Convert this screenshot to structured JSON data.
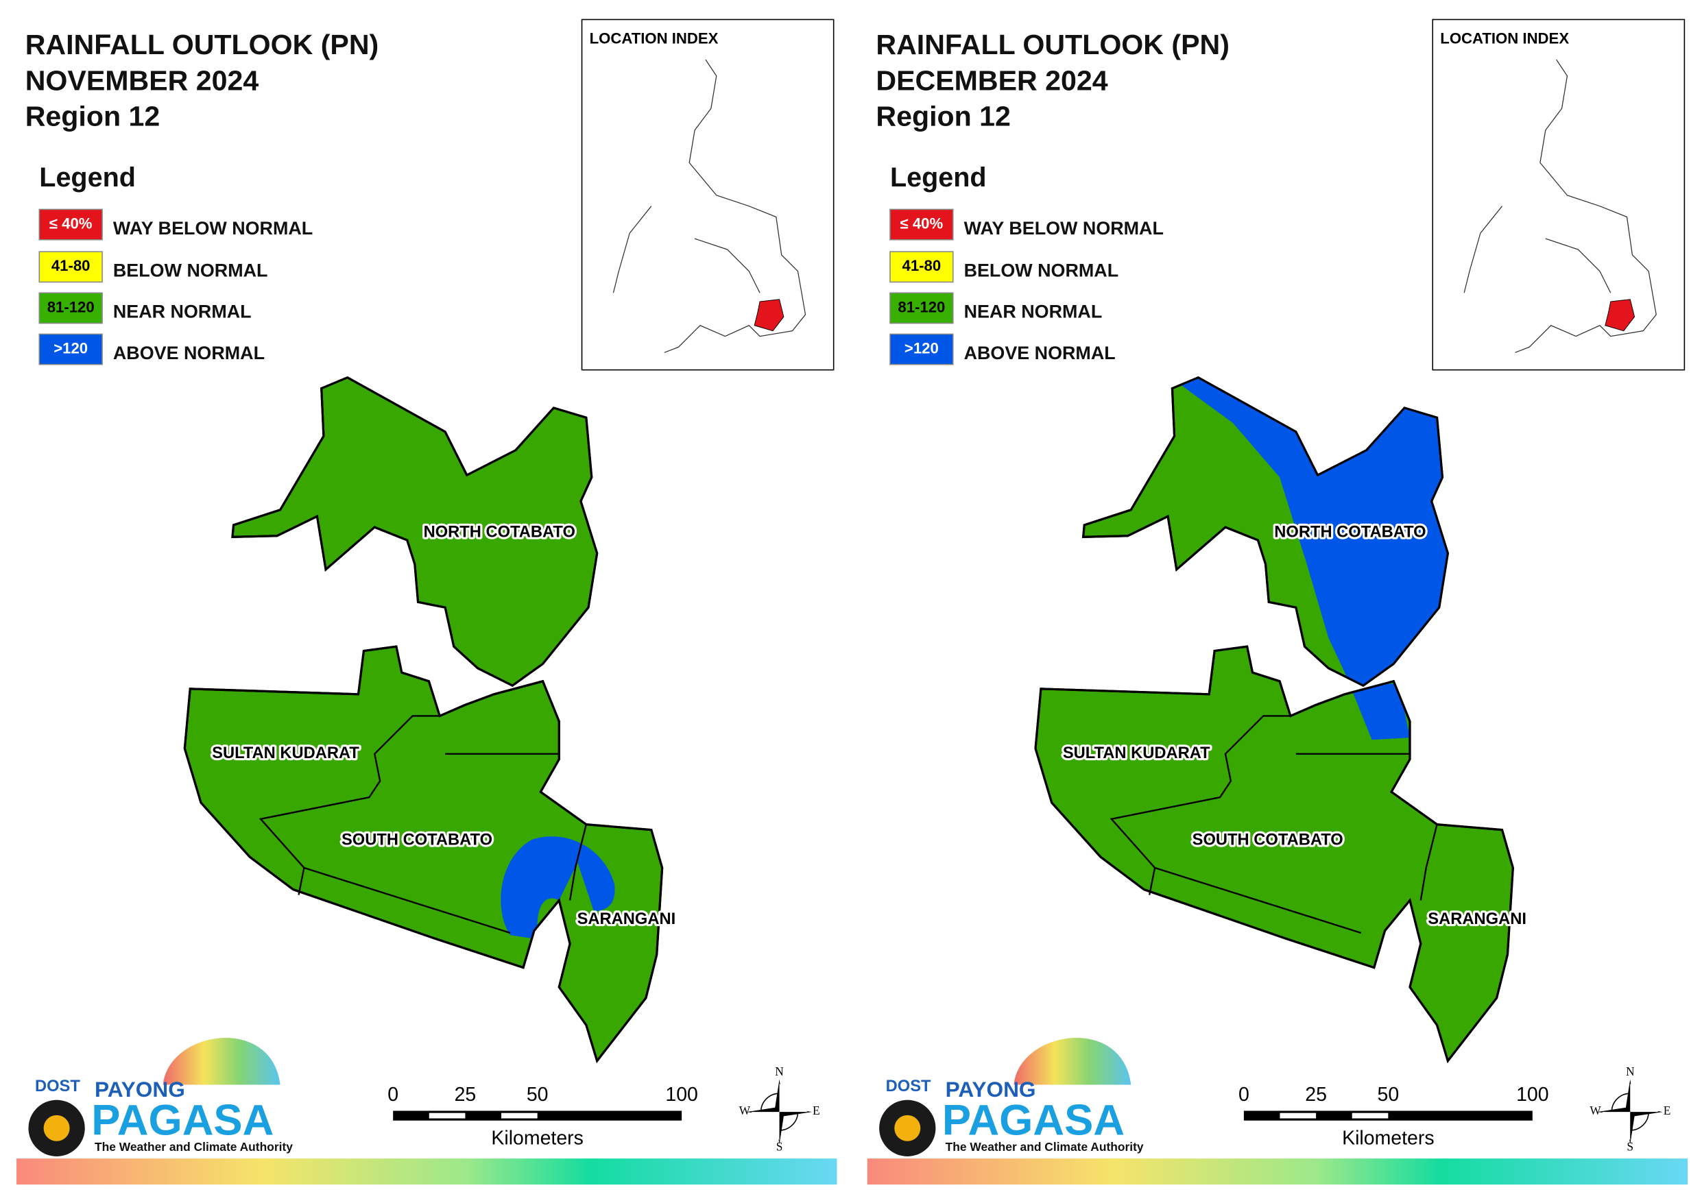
{
  "panels": [
    {
      "title": [
        "RAINFALL OUTLOOK (PN)",
        "NOVEMBER 2024",
        "Region 12"
      ],
      "legend": {
        "title": "Legend",
        "items": [
          {
            "swatch": "≤ 40%",
            "label": "WAY BELOW NORMAL",
            "color": "#e3141b"
          },
          {
            "swatch": "41-80",
            "label": "BELOW NORMAL",
            "color": "#ffff00"
          },
          {
            "swatch": "81-120",
            "label": "NEAR NORMAL",
            "color": "#38b000"
          },
          {
            "swatch": ">120",
            "label": "ABOVE NORMAL",
            "color": "#0057e7"
          }
        ]
      },
      "location_index": "LOCATION INDEX",
      "provinces": [
        "NORTH COTABATO",
        "SULTAN KUDARAT",
        "SOUTH COTABATO",
        "SARANGANI"
      ],
      "scale_bar": {
        "ticks": [
          0,
          25,
          50,
          100
        ],
        "unit": "Kilometers"
      },
      "compass": [
        "N",
        "E",
        "S",
        "W"
      ],
      "logo": {
        "agency": "DOST",
        "brand_top": "PAYONG",
        "brand": "PAGASA",
        "tagline": "The Weather and Climate Authority"
      }
    },
    {
      "title": [
        "RAINFALL OUTLOOK (PN)",
        "DECEMBER 2024",
        "Region 12"
      ],
      "legend": {
        "title": "Legend",
        "items": [
          {
            "swatch": "≤ 40%",
            "label": "WAY BELOW NORMAL",
            "color": "#e3141b"
          },
          {
            "swatch": "41-80",
            "label": "BELOW NORMAL",
            "color": "#ffff00"
          },
          {
            "swatch": "81-120",
            "label": "NEAR NORMAL",
            "color": "#38b000"
          },
          {
            "swatch": ">120",
            "label": "ABOVE NORMAL",
            "color": "#0057e7"
          }
        ]
      },
      "location_index": "LOCATION INDEX",
      "provinces": [
        "NORTH COTABATO",
        "SULTAN KUDARAT",
        "SOUTH COTABATO",
        "SARANGANI"
      ],
      "scale_bar": {
        "ticks": [
          0,
          25,
          50,
          100
        ],
        "unit": "Kilometers"
      },
      "compass": [
        "N",
        "E",
        "S",
        "W"
      ],
      "logo": {
        "agency": "DOST",
        "brand_top": "PAYONG",
        "brand": "PAGASA",
        "tagline": "The Weather and Climate Authority"
      }
    }
  ]
}
